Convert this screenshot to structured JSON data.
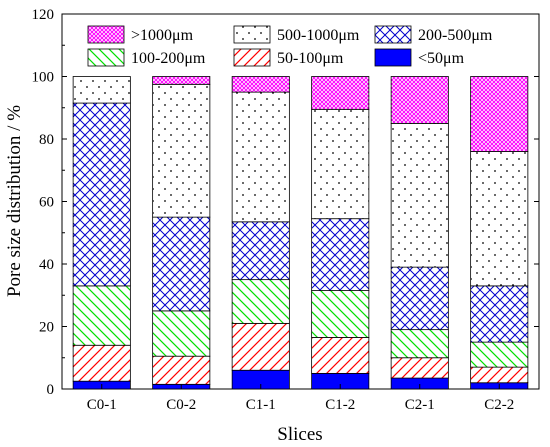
{
  "chart_data": {
    "type": "bar",
    "stacked": true,
    "title": "",
    "xlabel": "Slices",
    "ylabel": "Pore size distribution / %",
    "ylim": [
      0,
      120
    ],
    "yticks": [
      0,
      20,
      40,
      60,
      80,
      100,
      120
    ],
    "categories": [
      "C0-1",
      "C0-2",
      "C1-1",
      "C1-2",
      "C2-1",
      "C2-2"
    ],
    "legend_placement": "top",
    "series": [
      {
        "name": "<50μm",
        "values": [
          2.5,
          1.5,
          6,
          5,
          3.5,
          2
        ],
        "color": "#0000ff",
        "pattern": "solid"
      },
      {
        "name": "50-100μm",
        "values": [
          11.5,
          9,
          15,
          11.5,
          6.5,
          5
        ],
        "color": "#ff0000",
        "pattern": "diagonal"
      },
      {
        "name": "100-200μm",
        "values": [
          19,
          14.5,
          14,
          15,
          9,
          8
        ],
        "color": "#00dd00",
        "pattern": "diagonal-back"
      },
      {
        "name": "200-500μm",
        "values": [
          58.5,
          30,
          18.5,
          23,
          20,
          18
        ],
        "color": "#0000cc",
        "pattern": "crosshatch"
      },
      {
        "name": "500-1000μm",
        "values": [
          8.5,
          42.5,
          41.5,
          35,
          46,
          43
        ],
        "color": "#000000",
        "pattern": "dots"
      },
      {
        "name": ">1000μm",
        "values": [
          0,
          2.5,
          5,
          10.5,
          15,
          24
        ],
        "color": "#ff00ff",
        "pattern": "dense-cross"
      }
    ]
  }
}
